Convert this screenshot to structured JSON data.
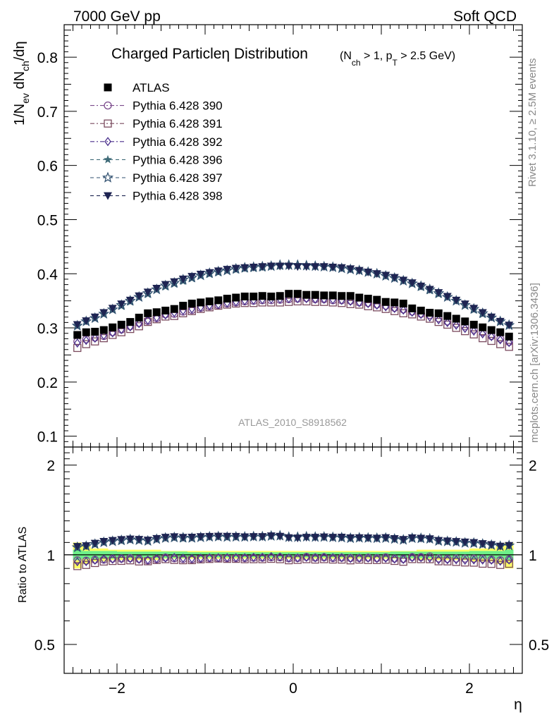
{
  "header": {
    "left": "7000 GeV pp",
    "right": "Soft QCD"
  },
  "side_labels": {
    "rivet": "Rivet 3.1.10, ≥ 2.5M events",
    "mcplots": "mcplots.cern.ch [arXiv:1306.3436]"
  },
  "watermark": "ATLAS_2010_S8918562",
  "colors": {
    "atlas": "#000000",
    "p390": "#7b4a8c",
    "p391": "#7a4a5e",
    "p392": "#4a2f8c",
    "p396": "#3f6b78",
    "p397": "#2f4f6f",
    "p398": "#1e2452",
    "band_inner": "#6ef08a",
    "band_outer": "#ffff66"
  },
  "chart_data": [
    {
      "type": "scatter",
      "panel": "main",
      "title_main": "Charged Particle",
      "title_eta": "η",
      "title_dist": " Distribution",
      "title_cond": "(N_ch > 1, p_T > 2.5 GeV)",
      "ylabel": "1/N_ev dN_ch/dη",
      "ylim": [
        0.08,
        0.86
      ],
      "xlim": [
        -2.6,
        2.6
      ],
      "x_ticks": [
        -2,
        0,
        2
      ],
      "y_ticks": [
        0.1,
        0.2,
        0.3,
        0.4,
        0.5,
        0.6,
        0.7,
        0.8
      ],
      "legend_position": "top-left",
      "x": [
        -2.45,
        -2.35,
        -2.25,
        -2.15,
        -2.05,
        -1.95,
        -1.85,
        -1.75,
        -1.65,
        -1.55,
        -1.45,
        -1.35,
        -1.25,
        -1.15,
        -1.05,
        -0.95,
        -0.85,
        -0.75,
        -0.65,
        -0.55,
        -0.45,
        -0.35,
        -0.25,
        -0.15,
        -0.05,
        0.05,
        0.15,
        0.25,
        0.35,
        0.45,
        0.55,
        0.65,
        0.75,
        0.85,
        0.95,
        1.05,
        1.15,
        1.25,
        1.35,
        1.45,
        1.55,
        1.65,
        1.75,
        1.85,
        1.95,
        2.05,
        2.15,
        2.25,
        2.35,
        2.45
      ],
      "series": [
        {
          "name": "ATLAS",
          "marker": "square-filled",
          "color": "#000000",
          "values": [
            0.287,
            0.292,
            0.293,
            0.296,
            0.301,
            0.306,
            0.311,
            0.319,
            0.327,
            0.329,
            0.332,
            0.335,
            0.341,
            0.345,
            0.347,
            0.349,
            0.351,
            0.354,
            0.356,
            0.358,
            0.358,
            0.359,
            0.358,
            0.359,
            0.363,
            0.363,
            0.361,
            0.361,
            0.36,
            0.36,
            0.359,
            0.359,
            0.356,
            0.354,
            0.352,
            0.348,
            0.347,
            0.345,
            0.336,
            0.332,
            0.328,
            0.327,
            0.322,
            0.317,
            0.312,
            0.306,
            0.301,
            0.296,
            0.292,
            0.284
          ]
        },
        {
          "name": "Pythia 6.428 390",
          "marker": "circle-open",
          "color": "#7b4a8c",
          "values": [
            0.275,
            0.279,
            0.282,
            0.285,
            0.292,
            0.297,
            0.303,
            0.309,
            0.313,
            0.318,
            0.325,
            0.326,
            0.33,
            0.333,
            0.337,
            0.34,
            0.342,
            0.345,
            0.347,
            0.349,
            0.35,
            0.351,
            0.351,
            0.352,
            0.353,
            0.354,
            0.355,
            0.353,
            0.353,
            0.351,
            0.351,
            0.35,
            0.347,
            0.346,
            0.343,
            0.341,
            0.337,
            0.334,
            0.33,
            0.326,
            0.324,
            0.318,
            0.312,
            0.308,
            0.303,
            0.297,
            0.292,
            0.285,
            0.28,
            0.274
          ]
        },
        {
          "name": "Pythia 6.428 391",
          "marker": "square-open",
          "color": "#7a4a5e",
          "values": [
            0.263,
            0.27,
            0.275,
            0.281,
            0.287,
            0.292,
            0.298,
            0.303,
            0.311,
            0.316,
            0.321,
            0.322,
            0.327,
            0.331,
            0.335,
            0.338,
            0.341,
            0.343,
            0.345,
            0.346,
            0.346,
            0.347,
            0.347,
            0.347,
            0.348,
            0.349,
            0.349,
            0.348,
            0.348,
            0.347,
            0.346,
            0.344,
            0.343,
            0.34,
            0.338,
            0.335,
            0.331,
            0.327,
            0.325,
            0.321,
            0.317,
            0.311,
            0.306,
            0.3,
            0.294,
            0.288,
            0.281,
            0.276,
            0.27,
            0.265
          ]
        },
        {
          "name": "Pythia 6.428 392",
          "marker": "diamond-open",
          "color": "#4a2f8c",
          "values": [
            0.272,
            0.277,
            0.281,
            0.286,
            0.291,
            0.297,
            0.302,
            0.308,
            0.314,
            0.319,
            0.324,
            0.328,
            0.332,
            0.335,
            0.338,
            0.341,
            0.343,
            0.346,
            0.348,
            0.35,
            0.351,
            0.352,
            0.353,
            0.353,
            0.354,
            0.354,
            0.354,
            0.353,
            0.353,
            0.352,
            0.351,
            0.349,
            0.347,
            0.345,
            0.342,
            0.339,
            0.336,
            0.333,
            0.329,
            0.325,
            0.32,
            0.315,
            0.31,
            0.305,
            0.299,
            0.294,
            0.289,
            0.284,
            0.278,
            0.273
          ]
        },
        {
          "name": "Pythia 6.428 396",
          "marker": "star-filled",
          "color": "#3f6b78",
          "values": [
            0.303,
            0.311,
            0.317,
            0.325,
            0.333,
            0.34,
            0.348,
            0.356,
            0.362,
            0.37,
            0.376,
            0.381,
            0.386,
            0.391,
            0.396,
            0.399,
            0.402,
            0.405,
            0.407,
            0.409,
            0.41,
            0.411,
            0.413,
            0.414,
            0.415,
            0.415,
            0.414,
            0.413,
            0.412,
            0.411,
            0.409,
            0.407,
            0.405,
            0.402,
            0.399,
            0.395,
            0.391,
            0.386,
            0.381,
            0.375,
            0.369,
            0.362,
            0.356,
            0.349,
            0.341,
            0.333,
            0.325,
            0.318,
            0.311,
            0.304
          ]
        },
        {
          "name": "Pythia 6.428 397",
          "marker": "star-open",
          "color": "#2f4f6f",
          "values": [
            0.304,
            0.312,
            0.318,
            0.326,
            0.334,
            0.342,
            0.35,
            0.357,
            0.364,
            0.371,
            0.378,
            0.383,
            0.389,
            0.393,
            0.397,
            0.401,
            0.404,
            0.406,
            0.409,
            0.411,
            0.412,
            0.413,
            0.414,
            0.416,
            0.416,
            0.416,
            0.415,
            0.414,
            0.413,
            0.412,
            0.41,
            0.408,
            0.406,
            0.403,
            0.4,
            0.396,
            0.392,
            0.387,
            0.382,
            0.377,
            0.371,
            0.364,
            0.357,
            0.35,
            0.342,
            0.335,
            0.327,
            0.319,
            0.312,
            0.305
          ]
        },
        {
          "name": "Pythia 6.428 398",
          "marker": "triangle-down-filled",
          "color": "#1e2452",
          "values": [
            0.306,
            0.313,
            0.32,
            0.328,
            0.336,
            0.344,
            0.351,
            0.359,
            0.366,
            0.373,
            0.38,
            0.385,
            0.39,
            0.395,
            0.399,
            0.402,
            0.405,
            0.408,
            0.41,
            0.411,
            0.412,
            0.413,
            0.414,
            0.414,
            0.414,
            0.413,
            0.413,
            0.413,
            0.413,
            0.412,
            0.411,
            0.409,
            0.406,
            0.403,
            0.4,
            0.397,
            0.393,
            0.388,
            0.383,
            0.377,
            0.371,
            0.365,
            0.358,
            0.351,
            0.344,
            0.336,
            0.328,
            0.32,
            0.312,
            0.305
          ]
        }
      ]
    },
    {
      "type": "scatter",
      "panel": "ratio",
      "ylabel": "Ratio to ATLAS",
      "yscale": "log",
      "ylim": [
        0.4,
        2.3
      ],
      "xlim": [
        -2.6,
        2.6
      ],
      "xlabel": "η",
      "x_ticks": [
        -2,
        0,
        2
      ],
      "y_ticks": [
        0.5,
        1,
        2
      ],
      "reference_line": 1,
      "band_inner": [
        0.96,
        0.97,
        0.97,
        0.97,
        0.97,
        0.975,
        0.975,
        0.975,
        0.975,
        0.975,
        0.975,
        0.975,
        0.975,
        0.98,
        0.98,
        0.98,
        0.98,
        0.98,
        0.98,
        0.98,
        0.98,
        0.98,
        0.98,
        0.98,
        0.98,
        0.98,
        0.98,
        0.98,
        0.98,
        0.98,
        0.98,
        0.98,
        0.98,
        0.98,
        0.98,
        0.98,
        0.975,
        0.975,
        0.975,
        0.975,
        0.975,
        0.975,
        0.975,
        0.975,
        0.975,
        0.97,
        0.97,
        0.97,
        0.97,
        0.96
      ],
      "band_outer": [
        0.9,
        0.93,
        0.95,
        0.95,
        0.96,
        0.96,
        0.96,
        0.96,
        0.96,
        0.96,
        0.97,
        0.97,
        0.97,
        0.97,
        0.97,
        0.97,
        0.97,
        0.97,
        0.97,
        0.97,
        0.97,
        0.97,
        0.97,
        0.97,
        0.97,
        0.97,
        0.97,
        0.97,
        0.97,
        0.97,
        0.97,
        0.97,
        0.97,
        0.97,
        0.97,
        0.97,
        0.97,
        0.97,
        0.97,
        0.96,
        0.96,
        0.96,
        0.96,
        0.96,
        0.96,
        0.95,
        0.95,
        0.95,
        0.93,
        0.9
      ]
    }
  ]
}
